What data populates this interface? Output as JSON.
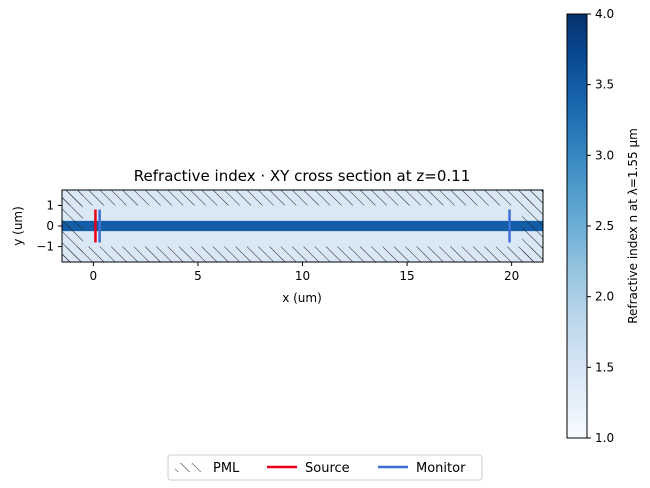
{
  "chart_data": {
    "type": "heatmap",
    "title": "Refractive index · XY cross section at z=0.11",
    "xlabel": "x (um)",
    "ylabel": "y (um)",
    "xlim": [
      -1.5,
      21.5
    ],
    "ylim": [
      -1.75,
      1.75
    ],
    "xticks": [
      0,
      5,
      10,
      15,
      20
    ],
    "yticks": [
      -1,
      0,
      1
    ],
    "background_index": 1.44,
    "waveguide": {
      "index": 3.48,
      "y_min": -0.25,
      "y_max": 0.25
    },
    "pml": [
      {
        "side": "top",
        "y_min": 1.0,
        "y_max": 1.75
      },
      {
        "side": "bottom",
        "y_min": -1.75,
        "y_max": -1.0
      },
      {
        "side": "left",
        "x_min": -1.5,
        "x_max": -0.5
      },
      {
        "side": "right",
        "x_min": 20.5,
        "x_max": 21.5
      }
    ],
    "sources": [
      {
        "x": 0.1,
        "y_min": -0.8,
        "y_max": 0.8
      }
    ],
    "monitors": [
      {
        "x": 0.3,
        "y_min": -0.8,
        "y_max": 0.8
      },
      {
        "x": 19.9,
        "y_min": -0.8,
        "y_max": 0.8
      }
    ],
    "colorbar": {
      "label": "Refractive index n at λ=1.55 μm",
      "range": [
        1.0,
        4.0
      ],
      "ticks": [
        1.0,
        1.5,
        2.0,
        2.5,
        3.0,
        3.5,
        4.0
      ],
      "colormap": "Blues"
    },
    "legend": {
      "placement": "bottom-center",
      "entries": [
        {
          "label": "PML",
          "kind": "hatch",
          "color": "#000000"
        },
        {
          "label": "Source",
          "kind": "line",
          "color": "#e8001a"
        },
        {
          "label": "Monitor",
          "kind": "line",
          "color": "#3d6fd6"
        }
      ]
    }
  }
}
